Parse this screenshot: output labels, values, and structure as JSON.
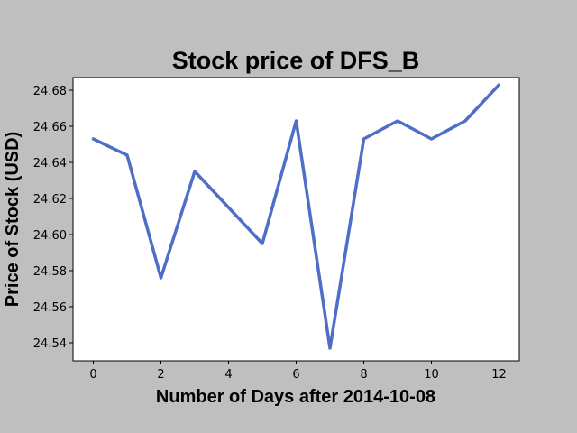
{
  "chart_data": {
    "type": "line",
    "title": "Stock price of DFS_B",
    "xlabel": "Number of Days after 2014-10-08",
    "ylabel": "Price of Stock (USD)",
    "xlim": [
      -0.6,
      12.6
    ],
    "ylim": [
      24.53,
      24.687
    ],
    "xticks": [
      0,
      2,
      4,
      6,
      8,
      10,
      12
    ],
    "yticks": [
      24.54,
      24.56,
      24.58,
      24.6,
      24.62,
      24.64,
      24.66,
      24.68
    ],
    "ytick_decimals": 2,
    "grid": false,
    "series": [
      {
        "color": "#4e6ec7",
        "x": [
          0,
          1,
          2,
          3,
          5,
          6,
          7,
          8,
          9,
          10,
          11,
          12
        ],
        "y": [
          24.653,
          24.644,
          24.576,
          24.635,
          24.595,
          24.663,
          24.537,
          24.653,
          24.663,
          24.653,
          24.663,
          24.683
        ]
      }
    ]
  },
  "colors": {
    "figure_background": "#bfbfbf",
    "plot_background": "#ffffff"
  }
}
